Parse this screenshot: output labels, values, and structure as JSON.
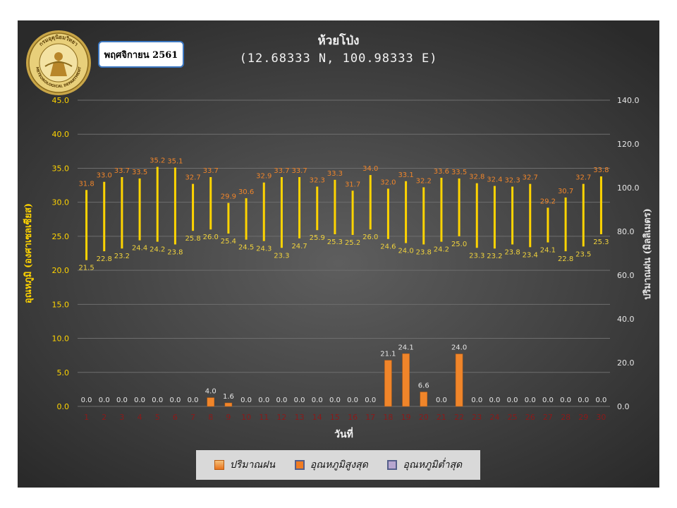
{
  "header": {
    "title": "ห้วยโป่ง",
    "subtitle": "(12.68333 N, 100.98333 E)",
    "month_label": "พฤศจิกายน 2561",
    "seal_text_top": "กรมอุตุนิยมวิทยา",
    "seal_text_bottom": "METEOROLOGICAL DEPARTMENT"
  },
  "legend": {
    "rain": "ปริมาณฝน",
    "tmax": "อุณหภูมิสูงสุด",
    "tmin": "อุณหภูมิต่ำสุด"
  },
  "colors": {
    "rain_bar": "#f0852a",
    "temp_bar": "#ffd400",
    "max_label": "#f0852a",
    "min_label": "#f0d23c",
    "left_axis": "#ffd400",
    "x_tick": "#8b1a1a"
  },
  "chart_data": {
    "type": "bar",
    "title": "ห้วยโป่ง",
    "subtitle": "(12.68333 N, 100.98333 E)",
    "xlabel": "วันที่",
    "ylabel_left": "อุณหภูมิ (องศาเซลเซียส)",
    "ylabel_right": "ปริมาณฝน (มิลลิเมตร)",
    "ylim_left": [
      0,
      45
    ],
    "yticks_left": [
      "0.0",
      "5.0",
      "10.0",
      "15.0",
      "20.0",
      "25.0",
      "30.0",
      "35.0",
      "40.0",
      "45.0"
    ],
    "ylim_right": [
      0,
      140
    ],
    "yticks_right": [
      "0.0",
      "20.0",
      "40.0",
      "60.0",
      "80.0",
      "100.0",
      "120.0",
      "140.0"
    ],
    "grid": true,
    "legend_position": "bottom",
    "days": [
      "1",
      "2",
      "3",
      "4",
      "5",
      "6",
      "7",
      "8",
      "9",
      "10",
      "11",
      "12",
      "13",
      "14",
      "15",
      "16",
      "17",
      "18",
      "19",
      "20",
      "21",
      "22",
      "23",
      "24",
      "25",
      "26",
      "27",
      "28",
      "29",
      "30"
    ],
    "series": [
      {
        "name": "ปริมาณฝน",
        "axis": "right",
        "values": [
          0.0,
          0.0,
          0.0,
          0.0,
          0.0,
          0.0,
          0.0,
          4.0,
          1.6,
          0.0,
          0.0,
          0.0,
          0.0,
          0.0,
          0.0,
          0.0,
          0.0,
          21.1,
          24.1,
          6.6,
          0.0,
          24.0,
          0.0,
          0.0,
          0.0,
          0.0,
          0.0,
          0.0,
          0.0,
          0.0
        ]
      },
      {
        "name": "อุณหภูมิสูงสุด",
        "axis": "left",
        "values": [
          31.8,
          33.0,
          33.7,
          33.5,
          35.2,
          35.1,
          32.7,
          33.7,
          29.9,
          30.6,
          32.9,
          33.7,
          33.7,
          32.3,
          33.3,
          31.7,
          34.0,
          32.0,
          33.1,
          32.2,
          33.6,
          33.5,
          32.8,
          32.4,
          32.3,
          32.7,
          29.2,
          30.7,
          32.7,
          33.8
        ]
      },
      {
        "name": "อุณหภูมิต่ำสุด",
        "axis": "left",
        "values": [
          21.5,
          22.8,
          23.2,
          24.4,
          24.2,
          23.8,
          25.8,
          26.0,
          25.4,
          24.5,
          24.3,
          23.3,
          24.7,
          25.9,
          25.3,
          25.2,
          26.0,
          24.6,
          24.0,
          23.8,
          24.2,
          25.0,
          23.3,
          23.2,
          23.8,
          23.4,
          24.1,
          22.8,
          23.5,
          25.3
        ]
      }
    ]
  }
}
